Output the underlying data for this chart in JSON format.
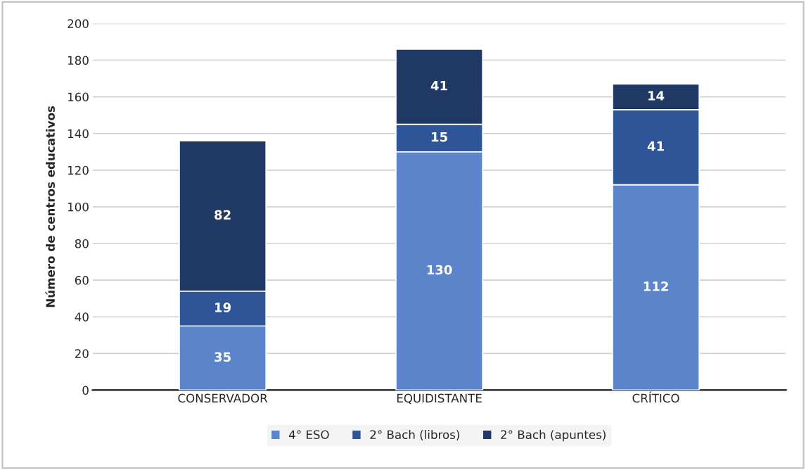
{
  "chart_data": {
    "type": "bar",
    "stacked": true,
    "ylabel": "Número de centros educativos",
    "categories": [
      "CONSERVADOR",
      "EQUIDISTANTE",
      "CRÍTICO"
    ],
    "series": [
      {
        "name": "4° ESO",
        "color": "#5b84cb",
        "values": [
          35,
          130,
          112
        ]
      },
      {
        "name": "2° Bach (libros)",
        "color": "#2e5597",
        "values": [
          19,
          15,
          41
        ]
      },
      {
        "name": "2° Bach (apuntes)",
        "color": "#203864",
        "values": [
          82,
          41,
          14
        ]
      }
    ],
    "ylim": [
      0,
      200
    ],
    "yticks": [
      0,
      20,
      40,
      60,
      80,
      100,
      120,
      140,
      160,
      180,
      200
    ],
    "grid": "y",
    "legend": "bottom",
    "data_labels": true
  }
}
